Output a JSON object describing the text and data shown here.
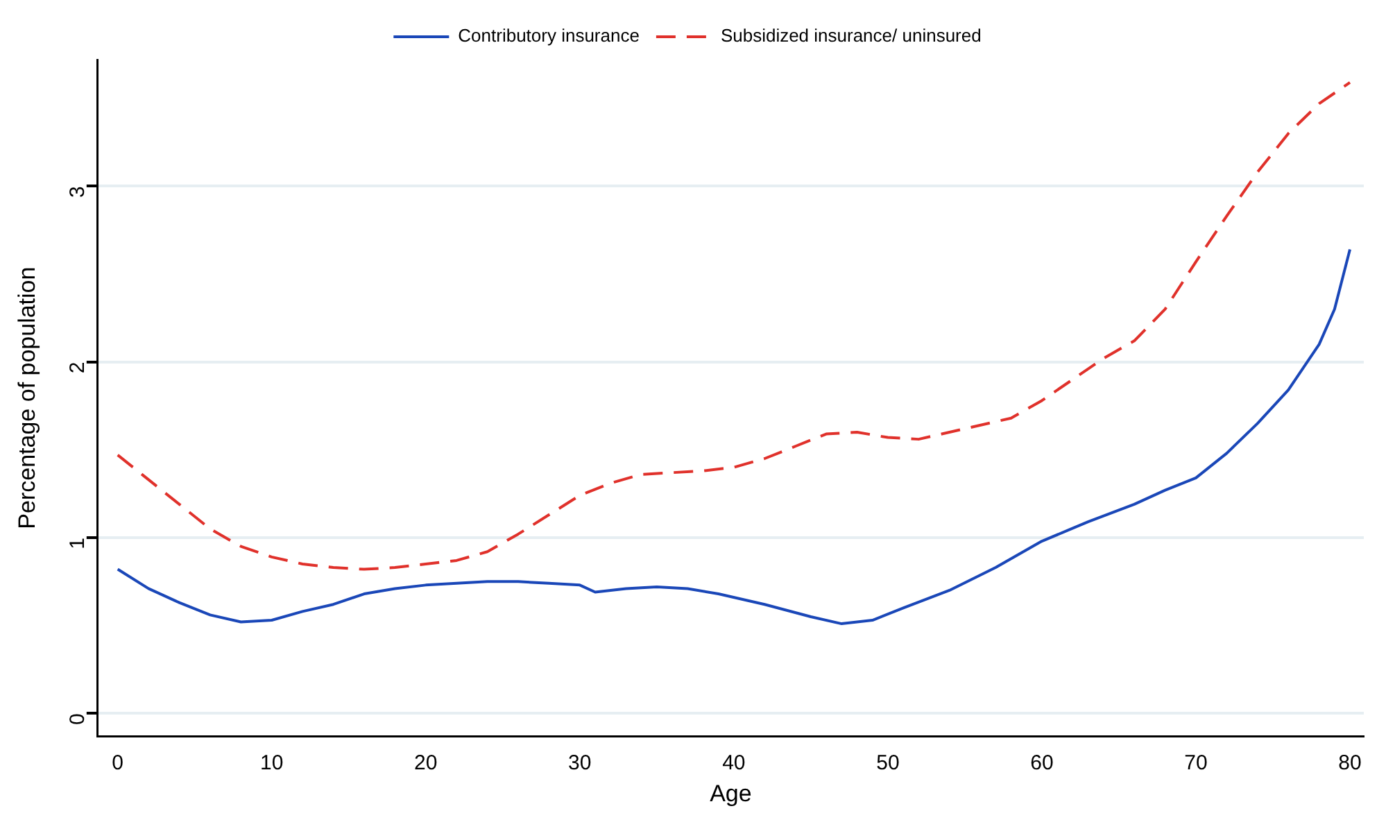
{
  "chart_data": {
    "type": "line",
    "xlabel": "Age",
    "ylabel": "Percentage of population",
    "xlim": [
      -1.3,
      80.9
    ],
    "xticks": [
      0,
      10,
      20,
      30,
      40,
      50,
      60,
      70,
      80
    ],
    "ylim": [
      -0.13,
      3.72
    ],
    "yticks": [
      0,
      1,
      2,
      3
    ],
    "grid": "y",
    "legend": "top",
    "marker": "none",
    "series": [
      {
        "name": "Contributory insurance",
        "color": "#1a47b8",
        "line_style": "solid",
        "x": [
          0,
          2,
          4,
          6,
          8,
          10,
          12,
          14,
          16,
          18,
          20,
          22,
          24,
          26,
          28,
          30,
          31,
          33,
          35,
          37,
          39,
          42,
          45,
          47,
          49,
          51,
          54,
          57,
          60,
          63,
          66,
          68,
          70,
          72,
          74,
          76,
          78,
          79,
          80
        ],
        "values": [
          0.82,
          0.71,
          0.63,
          0.56,
          0.52,
          0.53,
          0.58,
          0.62,
          0.68,
          0.71,
          0.73,
          0.74,
          0.75,
          0.75,
          0.74,
          0.73,
          0.69,
          0.71,
          0.72,
          0.71,
          0.68,
          0.62,
          0.55,
          0.51,
          0.53,
          0.6,
          0.7,
          0.83,
          0.98,
          1.09,
          1.19,
          1.27,
          1.34,
          1.48,
          1.65,
          1.84,
          2.1,
          2.3,
          2.64
        ]
      },
      {
        "name": "Subsidized insurance/ uninsured",
        "color": "#e0312b",
        "line_style": "dashed",
        "x": [
          0,
          2,
          4,
          6,
          8,
          10,
          12,
          14,
          16,
          18,
          20,
          22,
          24,
          26,
          28,
          30,
          32,
          34,
          36,
          38,
          40,
          42,
          44,
          46,
          48,
          50,
          52,
          55,
          58,
          60,
          62,
          64,
          66,
          68,
          70,
          72,
          74,
          76,
          78,
          80
        ],
        "values": [
          1.47,
          1.33,
          1.19,
          1.05,
          0.95,
          0.89,
          0.85,
          0.83,
          0.82,
          0.83,
          0.85,
          0.87,
          0.92,
          1.02,
          1.13,
          1.24,
          1.31,
          1.36,
          1.37,
          1.38,
          1.4,
          1.45,
          1.52,
          1.59,
          1.6,
          1.57,
          1.56,
          1.62,
          1.68,
          1.78,
          1.9,
          2.02,
          2.12,
          2.3,
          2.57,
          2.83,
          3.08,
          3.3,
          3.47,
          3.59
        ]
      }
    ]
  }
}
